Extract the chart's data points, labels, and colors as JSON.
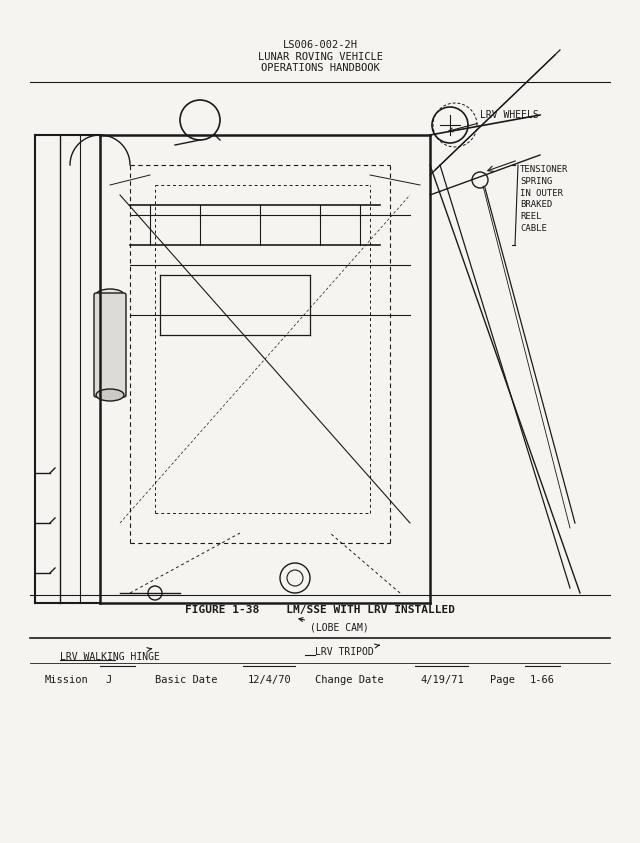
{
  "header_line1": "LS006-002-2H",
  "header_line2": "LUNAR ROVING VEHICLE",
  "header_line3": "OPERATIONS HANDBOOK",
  "figure_caption": "FIGURE 1-38    LM/SSE WITH LRV INSTALLED",
  "label_lrv_wheels": "LRV WHEELS",
  "label_tensioner": "TENSIONER\nSPRING\nIN OUTER\nBRAKED\nREEL\nCABLE",
  "label_lobe_cam": "(LOBE CAM)",
  "label_lrv_tripod": "LRV TRIPOD",
  "label_lrv_walking_hinge": "LRV WALKING HINGE",
  "bg_color": "#f5f4f0",
  "line_color": "#1a1a1a",
  "text_color": "#1a1a1a",
  "header_fontsize": 7.5,
  "label_fontsize": 7,
  "caption_fontsize": 8,
  "footer_fontsize": 7.5
}
